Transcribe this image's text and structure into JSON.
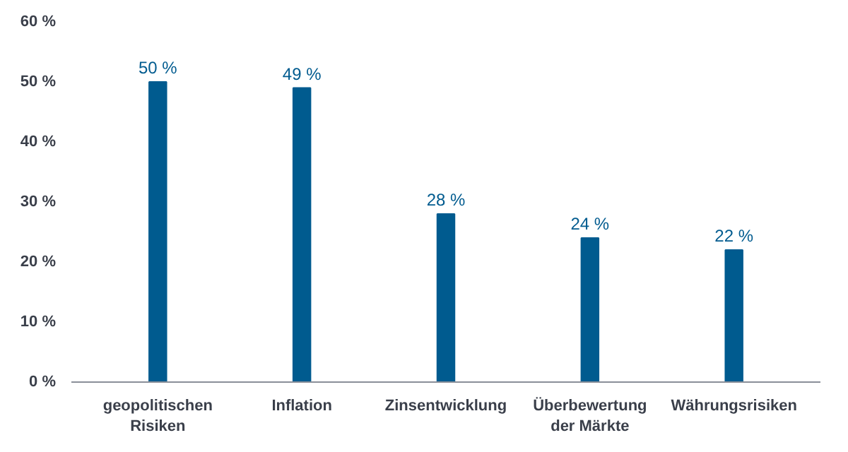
{
  "chart_data": {
    "type": "bar",
    "categories": [
      "geopolitischen\nRisiken",
      "Inflation",
      "Zinsentwicklung",
      "Überbewertung\nder Märkte",
      "Währungsrisiken"
    ],
    "values": [
      50,
      49,
      28,
      24,
      22
    ],
    "value_labels": [
      "50 %",
      "49 %",
      "28 %",
      "24 %",
      "22 %"
    ],
    "color": "#005b8f",
    "ylim": [
      0,
      60
    ],
    "yticks": [
      {
        "value": 0,
        "label": "0 %"
      },
      {
        "value": 10,
        "label": "10 %"
      },
      {
        "value": 20,
        "label": "20 %"
      },
      {
        "value": 30,
        "label": "30 %"
      },
      {
        "value": 40,
        "label": "40 %"
      },
      {
        "value": 50,
        "label": "50 %"
      },
      {
        "value": 60,
        "label": "60 %"
      }
    ],
    "grid": false
  }
}
